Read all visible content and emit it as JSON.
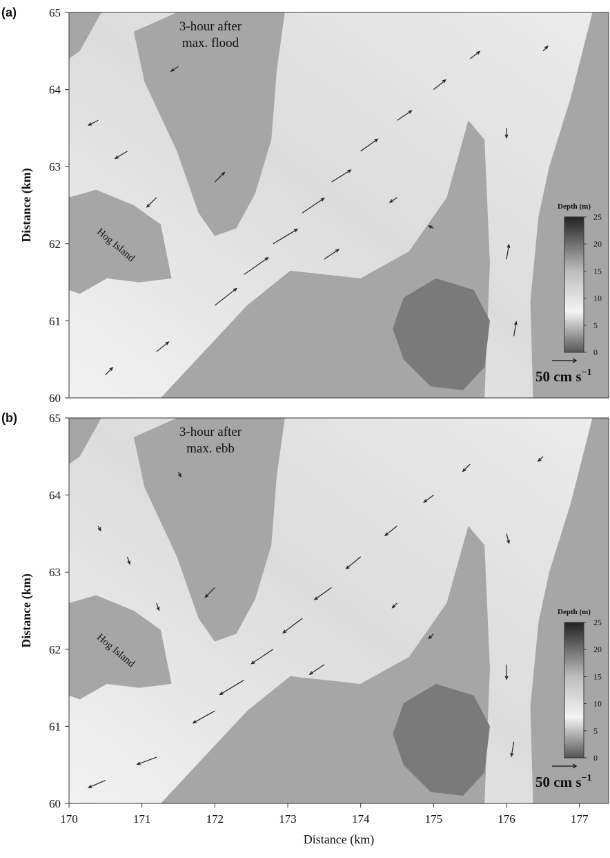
{
  "chart_data": [
    {
      "type": "quiver",
      "panel": "(a)",
      "annotation": [
        "3-hour after",
        "max. flood"
      ],
      "island_label": "Hog Island",
      "ylabel": "Distance (km)",
      "xlim": [
        170,
        177.4
      ],
      "ylim": [
        60,
        65
      ],
      "yticks": [
        60,
        61,
        62,
        63,
        64,
        65
      ],
      "colorbar": {
        "title": "Depth (m)",
        "lim": [
          0,
          25
        ],
        "ticks": [
          0,
          5,
          10,
          15,
          20,
          25
        ]
      },
      "scale": {
        "value": 50,
        "label": "50 cm s",
        "exponent": "−1"
      },
      "vectors": {
        "x": [
          170.5,
          171.2,
          172.0,
          172.4,
          172.8,
          173.2,
          173.6,
          174.0,
          174.5,
          175.0,
          175.5,
          170.4,
          170.8,
          171.2,
          174.5,
          175.0,
          176.0,
          176.1,
          176.0,
          176.5,
          173.5,
          172.0,
          171.5
        ],
        "y": [
          60.3,
          60.6,
          61.2,
          61.6,
          62.0,
          62.4,
          62.8,
          63.2,
          63.6,
          64.0,
          64.4,
          63.6,
          63.2,
          62.6,
          62.6,
          62.2,
          61.8,
          60.8,
          63.5,
          64.5,
          61.8,
          62.8,
          64.3
        ],
        "u": [
          15,
          25,
          45,
          50,
          50,
          45,
          40,
          35,
          30,
          25,
          20,
          -20,
          -25,
          -20,
          -15,
          -10,
          5,
          5,
          0,
          10,
          30,
          20,
          -15
        ],
        "v": [
          15,
          20,
          35,
          35,
          30,
          30,
          25,
          25,
          20,
          20,
          15,
          -10,
          -15,
          -20,
          -10,
          5,
          30,
          30,
          -20,
          10,
          20,
          20,
          -10
        ]
      }
    },
    {
      "type": "quiver",
      "panel": "(b)",
      "annotation": [
        "3-hour after",
        "max. ebb"
      ],
      "island_label": "Hog Island",
      "xlabel": "Distance (km)",
      "ylabel": "Distance (km)",
      "xlim": [
        170,
        177.4
      ],
      "ylim": [
        60,
        65
      ],
      "xticks": [
        170,
        171,
        172,
        173,
        174,
        175,
        176,
        177
      ],
      "yticks": [
        60,
        61,
        62,
        63,
        64,
        65
      ],
      "colorbar": {
        "title": "Depth (m)",
        "lim": [
          0,
          25
        ],
        "ticks": [
          0,
          5,
          10,
          15,
          20,
          25
        ]
      },
      "scale": {
        "value": 50,
        "label": "50 cm s",
        "exponent": "−1"
      },
      "vectors": {
        "x": [
          170.5,
          171.2,
          172.0,
          172.4,
          172.8,
          173.2,
          173.6,
          174.0,
          174.5,
          175.0,
          175.5,
          170.4,
          170.8,
          171.2,
          174.5,
          175.0,
          176.0,
          176.1,
          176.0,
          176.5,
          173.5,
          172.0,
          171.5
        ],
        "y": [
          60.3,
          60.6,
          61.2,
          61.6,
          62.0,
          62.4,
          62.8,
          63.2,
          63.6,
          64.0,
          64.4,
          63.6,
          63.2,
          62.6,
          62.6,
          62.2,
          61.8,
          60.8,
          63.5,
          64.5,
          61.8,
          62.8,
          64.3
        ],
        "u": [
          -35,
          -40,
          -45,
          -50,
          -45,
          -40,
          -35,
          -30,
          -25,
          -20,
          -15,
          5,
          5,
          5,
          -10,
          -10,
          0,
          -5,
          5,
          -10,
          -30,
          -20,
          5
        ],
        "v": [
          -15,
          -15,
          -25,
          -30,
          -30,
          -30,
          -25,
          -25,
          -20,
          -15,
          -15,
          -10,
          -15,
          -15,
          -10,
          -10,
          -30,
          -30,
          -20,
          -10,
          -20,
          -20,
          -10
        ]
      }
    }
  ]
}
